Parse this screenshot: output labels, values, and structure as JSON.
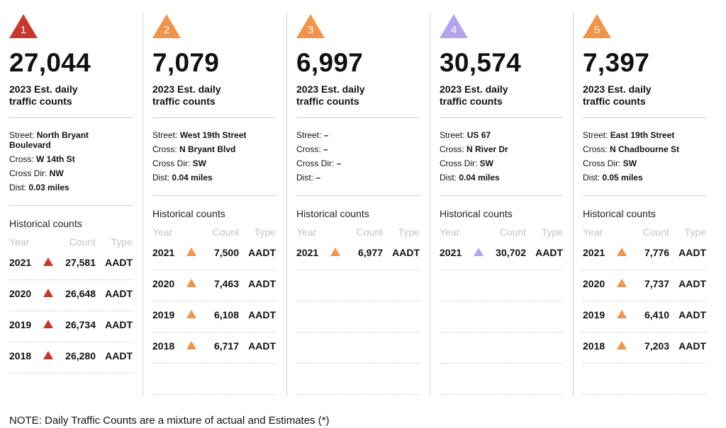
{
  "colors": {
    "red": "#c9372c",
    "orange": "#f0934b",
    "purple": "#b3a4ee"
  },
  "labels": {
    "sub_line1": "2023 Est. daily",
    "sub_line2": "traffic counts",
    "street": "Street: ",
    "cross": "Cross: ",
    "cross_dir": "Cross Dir: ",
    "dist": "Dist: ",
    "historical": "Historical counts",
    "col_year": "Year",
    "col_count": "Count",
    "col_type": "Type"
  },
  "cards": [
    {
      "number": "1",
      "color": "red",
      "icon": "triangle-marker-icon",
      "count": "27,044",
      "street": "North Bryant Boulevard",
      "cross": "W 14th St",
      "cross_dir": "NW",
      "dist": "0.03 miles",
      "history": [
        {
          "year": "2021",
          "count": "27,581",
          "type": "AADT"
        },
        {
          "year": "2020",
          "count": "26,648",
          "type": "AADT"
        },
        {
          "year": "2019",
          "count": "26,734",
          "type": "AADT"
        },
        {
          "year": "2018",
          "count": "26,280",
          "type": "AADT"
        }
      ]
    },
    {
      "number": "2",
      "color": "orange",
      "icon": "triangle-marker-icon",
      "count": "7,079",
      "street": "West 19th Street",
      "cross": "N Bryant Blvd",
      "cross_dir": "SW",
      "dist": "0.04 miles",
      "history": [
        {
          "year": "2021",
          "count": "7,500",
          "type": "AADT"
        },
        {
          "year": "2020",
          "count": "7,463",
          "type": "AADT"
        },
        {
          "year": "2019",
          "count": "6,108",
          "type": "AADT"
        },
        {
          "year": "2018",
          "count": "6,717",
          "type": "AADT"
        }
      ]
    },
    {
      "number": "3",
      "color": "orange",
      "icon": "triangle-marker-icon",
      "count": "6,997",
      "street": "–",
      "cross": "–",
      "cross_dir": "–",
      "dist": "–",
      "history": [
        {
          "year": "2021",
          "count": "6,977",
          "type": "AADT"
        }
      ]
    },
    {
      "number": "4",
      "color": "purple",
      "icon": "triangle-marker-icon",
      "count": "30,574",
      "street": "US 67",
      "cross": "N River Dr",
      "cross_dir": "SW",
      "dist": "0.04 miles",
      "history": [
        {
          "year": "2021",
          "count": "30,702",
          "type": "AADT"
        }
      ]
    },
    {
      "number": "5",
      "color": "orange",
      "icon": "triangle-marker-icon",
      "count": "7,397",
      "street": "East 19th Street",
      "cross": "N Chadbourne St",
      "cross_dir": "SW",
      "dist": "0.05 miles",
      "history": [
        {
          "year": "2021",
          "count": "7,776",
          "type": "AADT"
        },
        {
          "year": "2020",
          "count": "7,737",
          "type": "AADT"
        },
        {
          "year": "2019",
          "count": "6,410",
          "type": "AADT"
        },
        {
          "year": "2018",
          "count": "7,203",
          "type": "AADT"
        }
      ]
    }
  ],
  "note": "NOTE: Daily Traffic Counts are a mixture of actual and Estimates (*)"
}
